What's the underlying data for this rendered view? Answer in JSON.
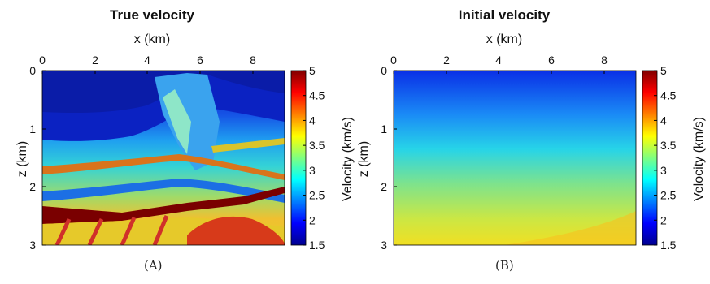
{
  "chart_data": [
    {
      "type": "heatmap",
      "title": "True velocity",
      "xlabel": "x (km)",
      "ylabel": "z (km)",
      "xlim": [
        0,
        9.2
      ],
      "ylim": [
        3,
        0
      ],
      "x_axis_position": "top",
      "xticks": [
        "0",
        "2",
        "4",
        "6",
        "8"
      ],
      "yticks": [
        "0",
        "1",
        "2",
        "3"
      ],
      "colorbar": {
        "label": "Velocity (km/s)",
        "range": [
          1.5,
          5
        ],
        "ticks": [
          "5",
          "4.5",
          "4",
          "3.5",
          "3",
          "2.5",
          "2",
          "1.5"
        ],
        "colormap": "jet"
      },
      "description_values": {
        "shallow_velocity": 1.6,
        "deep_velocity_max": 5.0
      },
      "caption": "(A)"
    },
    {
      "type": "heatmap",
      "title": "Initial velocity",
      "xlabel": "x (km)",
      "ylabel": "z (km)",
      "xlim": [
        0,
        9.2
      ],
      "ylim": [
        3,
        0
      ],
      "x_axis_position": "top",
      "xticks": [
        "0",
        "2",
        "4",
        "6",
        "8"
      ],
      "yticks": [
        "0",
        "1",
        "2",
        "3"
      ],
      "colorbar": {
        "label": "Velocity (km/s)",
        "range": [
          1.5,
          5
        ],
        "ticks": [
          "5",
          "4.5",
          "4",
          "3.5",
          "3",
          "2.5",
          "2",
          "1.5"
        ],
        "colormap": "jet"
      },
      "gradient_velocity": {
        "top": 1.6,
        "bottom": 3.7
      },
      "caption": "(B)"
    }
  ]
}
